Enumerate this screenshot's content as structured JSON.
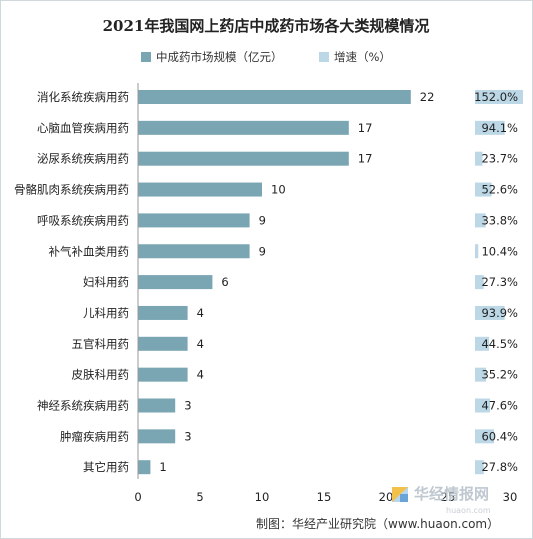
{
  "chart_data": {
    "type": "bar",
    "orientation": "horizontal",
    "title": "2021年我国网上药店中成药市场各大类规模情况",
    "categories": [
      "消化系统疾病用药",
      "心脑血管疾病用药",
      "泌尿系统疾病用药",
      "骨骼肌肉系统疾病用药",
      "呼吸系统疾病用药",
      "补气补血类用药",
      "妇科用药",
      "儿科用药",
      "五官科用药",
      "皮肤科用药",
      "神经系统疾病用药",
      "肿瘤疾病用药",
      "其它用药"
    ],
    "series": [
      {
        "name": "中成药市场规模（亿元）",
        "values": [
          22,
          17,
          17,
          10,
          9,
          9,
          6,
          4,
          4,
          4,
          3,
          3,
          1
        ],
        "value_labels": [
          "22",
          "17",
          "17",
          "10",
          "9",
          "9",
          "6",
          "4",
          "4",
          "4",
          "3",
          "3",
          "1"
        ],
        "color": "#7aa6b3"
      },
      {
        "name": "增速（%）",
        "values": [
          152.0,
          94.1,
          23.7,
          52.6,
          33.8,
          10.4,
          27.3,
          93.9,
          44.5,
          35.2,
          47.6,
          60.4,
          27.8
        ],
        "value_labels": [
          "152.0%",
          "94.1%",
          "23.7%",
          "52.6%",
          "33.8%",
          "10.4%",
          "27.3%",
          "93.9%",
          "44.5%",
          "35.2%",
          "47.6%",
          "60.4%",
          "27.8%"
        ],
        "color": "#bcd7e6"
      }
    ],
    "xlim": [
      0,
      30
    ],
    "xticks": [
      "0",
      "5",
      "10",
      "15",
      "20",
      "25",
      "30"
    ],
    "growth_max": 152.0,
    "legend_position": "top",
    "grid": false
  },
  "footer": {
    "source": "制图：华经产业研究院（www.huaon.com）",
    "watermark": "华经情报网",
    "watermark_url": "huaon.com"
  }
}
